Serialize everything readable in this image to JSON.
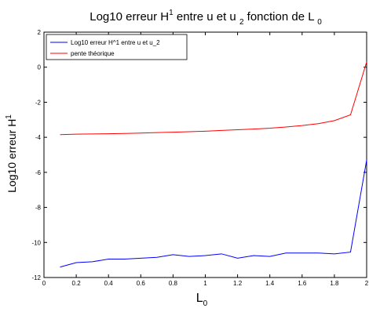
{
  "chart_data": {
    "type": "line",
    "title": {
      "text": "Log10 erreur H",
      "sup": "1",
      "mid": " entre u et u ",
      "sub1": "2",
      "end": " fonction de L ",
      "sub2": "0"
    },
    "xlabel": {
      "text": "L",
      "sub": "0"
    },
    "ylabel": {
      "text": "Log10 erreur H",
      "sup": "1"
    },
    "xlim": [
      0,
      2
    ],
    "ylim": [
      -12,
      2
    ],
    "xticks": [
      0,
      0.2,
      0.4,
      0.6,
      0.8,
      1,
      1.2,
      1.4,
      1.6,
      1.8,
      2
    ],
    "xtick_labels": [
      "0",
      "0.2",
      "0.4",
      "0.6",
      "0.8",
      "1",
      "1.2",
      "1.4",
      "1.6",
      "1.8",
      "2"
    ],
    "yticks": [
      -12,
      -10,
      -8,
      -6,
      -4,
      -2,
      0,
      2
    ],
    "ytick_labels": [
      "-12",
      "-10",
      "-8",
      "-6",
      "-4",
      "-2",
      "0",
      "2"
    ],
    "grid": false,
    "legend_position": "top-left",
    "x": [
      0.1,
      0.2,
      0.3,
      0.4,
      0.5,
      0.6,
      0.7,
      0.8,
      0.9,
      1.0,
      1.1,
      1.2,
      1.3,
      1.4,
      1.5,
      1.6,
      1.7,
      1.8,
      1.9,
      2.0
    ],
    "series": [
      {
        "name": "Log10 erreur H^1 entre u et u_2",
        "color": "#0000ff",
        "values": [
          -11.4,
          -11.15,
          -11.1,
          -10.95,
          -10.95,
          -10.9,
          -10.85,
          -10.7,
          -10.8,
          -10.75,
          -10.65,
          -10.9,
          -10.75,
          -10.8,
          -10.6,
          -10.6,
          -10.6,
          -10.65,
          -10.55,
          -5.3
        ]
      },
      {
        "name": "pente théorique",
        "color": "#ff0000",
        "values": [
          -3.85,
          -3.82,
          -3.81,
          -3.8,
          -3.78,
          -3.76,
          -3.73,
          -3.71,
          -3.68,
          -3.65,
          -3.61,
          -3.57,
          -3.53,
          -3.48,
          -3.41,
          -3.33,
          -3.22,
          -3.05,
          -2.72,
          0.3
        ]
      }
    ]
  }
}
